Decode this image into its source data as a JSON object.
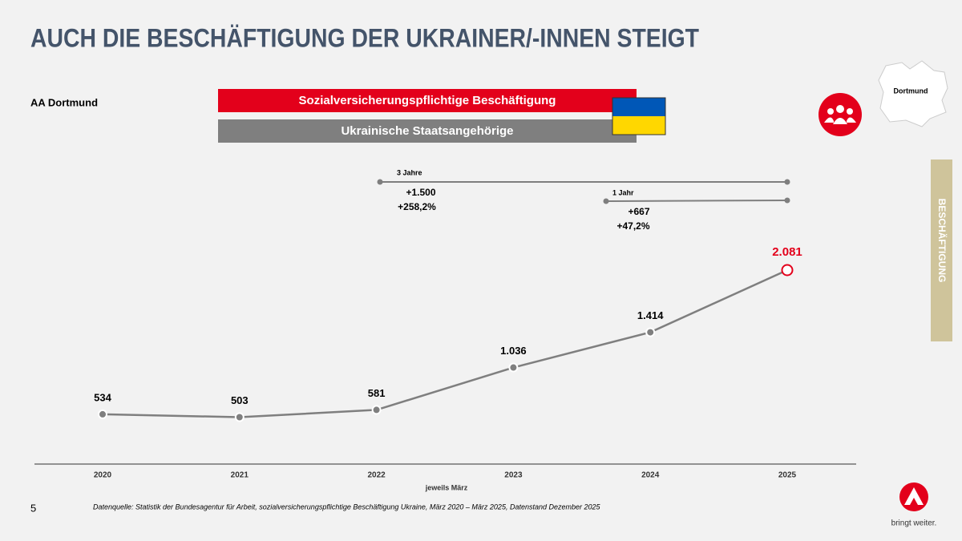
{
  "title": "AUCH DIE BESCHÄFTIGUNG DER UKRAINER/-INNEN STEIGT",
  "region": "AA Dortmund",
  "banners": [
    "Sozialversicherungspflichtige Beschäftigung",
    "Ukrainische Staatsangehörige"
  ],
  "map_label": "Dortmund",
  "side_tab": "BESCHÄFTIGUNG",
  "page_number": "5",
  "source": "Datenquelle: Statistik der Bundesagentur für Arbeit, sozialversicherungspflichtige Beschäftigung Ukraine, März 2020 – März 2025, Datenstand Dezember 2025",
  "logo_text": "bringt weiter.",
  "chart_data": {
    "type": "line",
    "x_label": "jeweils März",
    "categories": [
      "2020",
      "2021",
      "2022",
      "2023",
      "2024",
      "2025"
    ],
    "values": [
      534,
      503,
      581,
      1036,
      1414,
      2081
    ],
    "value_labels": [
      "534",
      "503",
      "581",
      "1.036",
      "1.414",
      "2.081"
    ],
    "color": "#7f7f7f",
    "highlight_color": "#e3001b",
    "annotations": [
      {
        "label": "3 Jahre",
        "change": "+1.500",
        "percent": "+258,2%"
      },
      {
        "label": "1 Jahr",
        "change": "+667",
        "percent": "+47,2%"
      }
    ]
  }
}
